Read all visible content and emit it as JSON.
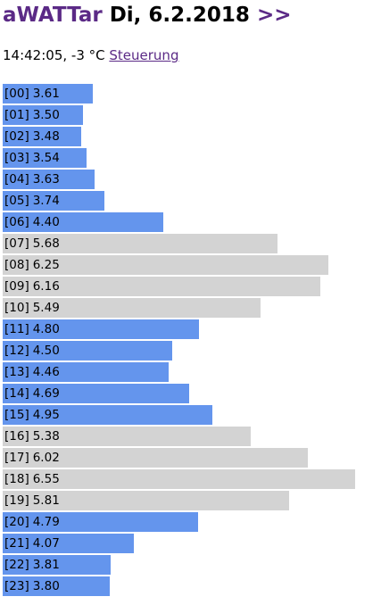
{
  "header": {
    "brand": "aWATTar",
    "date": "Di, 6.2.2018",
    "next": ">>"
  },
  "status": {
    "text": "14:42:05, -3 °C",
    "link": "Steuerung"
  },
  "chart_data": {
    "type": "bar",
    "orientation": "horizontal",
    "categories": [
      "[00]",
      "[01]",
      "[02]",
      "[03]",
      "[04]",
      "[05]",
      "[06]",
      "[07]",
      "[08]",
      "[09]",
      "[10]",
      "[11]",
      "[12]",
      "[13]",
      "[14]",
      "[15]",
      "[16]",
      "[17]",
      "[18]",
      "[19]",
      "[20]",
      "[21]",
      "[22]",
      "[23]"
    ],
    "values": [
      3.61,
      3.5,
      3.48,
      3.54,
      3.63,
      3.74,
      4.4,
      5.68,
      6.25,
      6.16,
      5.49,
      4.8,
      4.5,
      4.46,
      4.69,
      4.95,
      5.38,
      6.02,
      6.55,
      5.81,
      4.79,
      4.07,
      3.81,
      3.8
    ],
    "value_labels": [
      "3.61",
      "3.50",
      "3.48",
      "3.54",
      "3.63",
      "3.74",
      "4.40",
      "5.68",
      "6.25",
      "6.16",
      "5.49",
      "4.80",
      "4.50",
      "4.46",
      "4.69",
      "4.95",
      "5.38",
      "6.02",
      "6.55",
      "5.81",
      "4.79",
      "4.07",
      "3.81",
      "3.80"
    ],
    "colors": [
      "#6495ed",
      "#6495ed",
      "#6495ed",
      "#6495ed",
      "#6495ed",
      "#6495ed",
      "#6495ed",
      "#d3d3d3",
      "#d3d3d3",
      "#d3d3d3",
      "#d3d3d3",
      "#6495ed",
      "#6495ed",
      "#6495ed",
      "#6495ed",
      "#6495ed",
      "#d3d3d3",
      "#d3d3d3",
      "#d3d3d3",
      "#d3d3d3",
      "#6495ed",
      "#6495ed",
      "#6495ed",
      "#6495ed"
    ],
    "xlim": [
      2.6,
      6.8
    ]
  }
}
